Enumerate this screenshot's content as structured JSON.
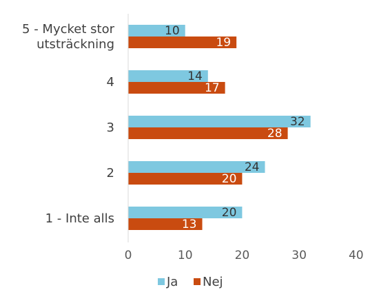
{
  "chart_data": {
    "type": "bar",
    "orientation": "horizontal",
    "categories": [
      [
        "5 - Mycket stor",
        "utsträckning"
      ],
      [
        "4"
      ],
      [
        "3"
      ],
      [
        "2"
      ],
      [
        "1 - Inte alls"
      ]
    ],
    "series": [
      {
        "name": "Ja",
        "color": "#7ec8e0",
        "values": [
          10,
          14,
          32,
          24,
          20
        ]
      },
      {
        "name": "Nej",
        "color": "#c94b10",
        "values": [
          19,
          17,
          28,
          20,
          13
        ]
      }
    ],
    "xlim": [
      0,
      40
    ],
    "xticks": [
      "0",
      "10",
      "20",
      "30",
      "40"
    ],
    "grid": false,
    "legend_position": "bottom",
    "data_labels": true
  }
}
